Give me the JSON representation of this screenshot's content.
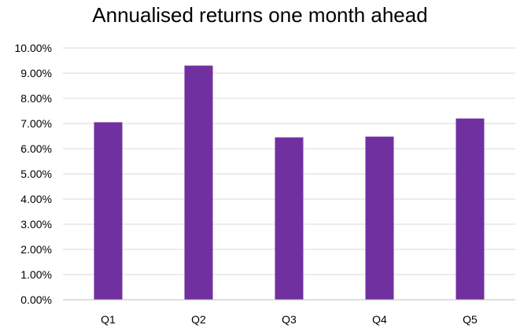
{
  "chart_data": {
    "type": "bar",
    "title": "Annualised returns one month ahead",
    "categories": [
      "Q1",
      "Q2",
      "Q3",
      "Q4",
      "Q5"
    ],
    "values": [
      7.05,
      9.3,
      6.45,
      6.48,
      7.2
    ],
    "unit": "%",
    "ylim": [
      0,
      10
    ],
    "yticks": [
      "0.00%",
      "1.00%",
      "2.00%",
      "3.00%",
      "4.00%",
      "5.00%",
      "6.00%",
      "7.00%",
      "8.00%",
      "9.00%",
      "10.00%"
    ],
    "grid": true,
    "legend": "none",
    "bar_color": "#7030A0",
    "gridline_color": "#d9d9d9",
    "axis_color": "#bfbfbf"
  }
}
